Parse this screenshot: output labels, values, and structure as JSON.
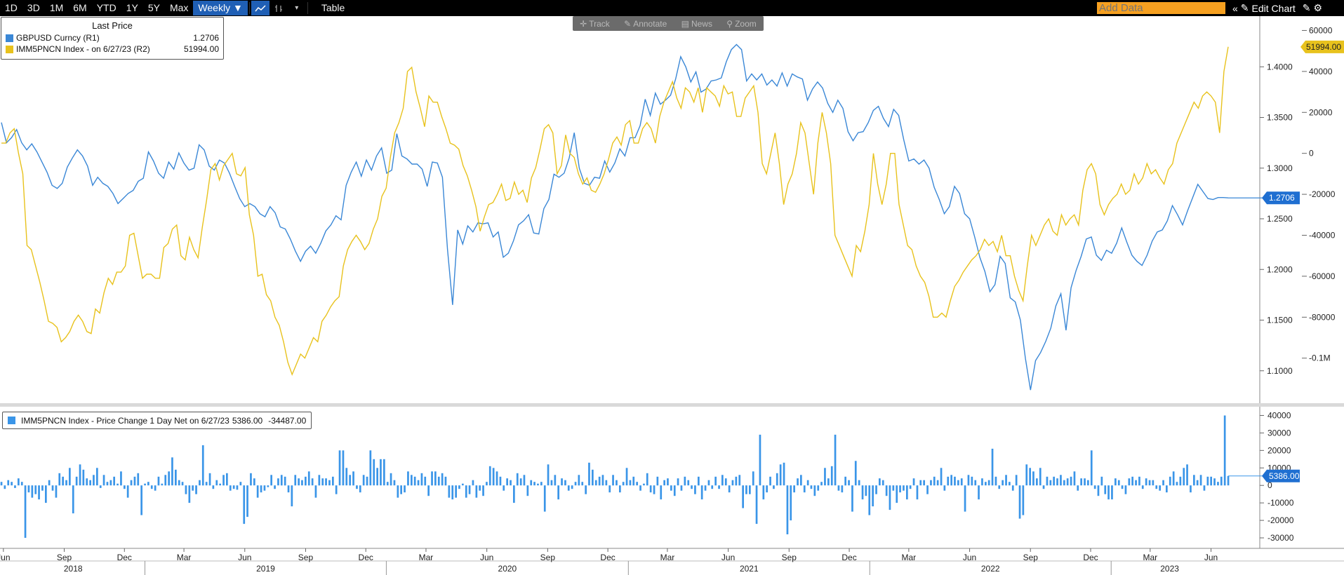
{
  "toolbar": {
    "ranges": [
      "1D",
      "3D",
      "1M",
      "6M",
      "YTD",
      "1Y",
      "5Y",
      "Max"
    ],
    "period": "Weekly ▼",
    "table_label": "Table",
    "add_data_placeholder": "Add Data",
    "edit_chart_label": "Edit Chart"
  },
  "overlay_tools": {
    "track": "Track",
    "annotate": "Annotate",
    "news": "News",
    "zoom": "Zoom"
  },
  "legend_top": {
    "title": "Last Price",
    "rows": [
      {
        "name": "GBPUSD Curncy  (R1)",
        "value": "1.2706",
        "color": "#3a87d6"
      },
      {
        "name": "IMM5PNCN Index -  on 6/27/23  (R2)",
        "value": "51994.00",
        "color": "#e8c21d"
      }
    ]
  },
  "legend_bottom": {
    "name": "IMM5PNCN Index - Price Change 1 Day Net on 6/27/23",
    "value1": "5386.00",
    "value2": "-34487.00",
    "color": "#3a95e8"
  },
  "colors": {
    "gbpusd": "#3a87d6",
    "imm": "#e8c21d",
    "bars": "#3a95e8",
    "tag_blue": "#1f6fd1",
    "tag_yellow": "#e8c21d"
  },
  "chart_data": [
    {
      "type": "line",
      "x_axis": {
        "month_labels": [
          "Jun",
          "Sep",
          "Dec",
          "Mar",
          "Jun",
          "Sep",
          "Dec",
          "Mar",
          "Jun",
          "Sep",
          "Dec",
          "Mar",
          "Jun",
          "Sep",
          "Dec",
          "Mar",
          "Jun",
          "Sep",
          "Dec",
          "Mar",
          "Jun"
        ],
        "year_labels": [
          "2018",
          "2019",
          "2020",
          "2021",
          "2022",
          "2023"
        ],
        "start": "2018-05-29",
        "end": "2023-06-27"
      },
      "y_axis_right_r1": {
        "ticks": [
          "1.4000",
          "1.3500",
          "1.3000",
          "1.2500",
          "1.2000",
          "1.1500",
          "1.1000"
        ],
        "range": [
          1.068,
          1.45
        ]
      },
      "y_axis_right_r2": {
        "ticks": [
          "60000",
          "40000",
          "20000",
          "0",
          "-20000",
          "-40000",
          "-60000",
          "-80000",
          "-0.1M"
        ],
        "range": [
          -122000,
          67000
        ]
      },
      "last_value_tags": {
        "r1": "1.2706",
        "r2": "51994.00"
      },
      "series": [
        {
          "name": "GBPUSD Curncy  (R1)",
          "axis": "R1",
          "values": [
            1.345,
            1.325,
            1.33,
            1.338,
            1.325,
            1.318,
            1.324,
            1.316,
            1.306,
            1.296,
            1.283,
            1.28,
            1.285,
            1.301,
            1.31,
            1.318,
            1.312,
            1.302,
            1.283,
            1.291,
            1.285,
            1.282,
            1.275,
            1.265,
            1.27,
            1.275,
            1.278,
            1.287,
            1.29,
            1.316,
            1.307,
            1.295,
            1.29,
            1.306,
            1.299,
            1.315,
            1.305,
            1.298,
            1.3,
            1.323,
            1.318,
            1.302,
            1.298,
            1.308,
            1.305,
            1.295,
            1.282,
            1.27,
            1.262,
            1.265,
            1.262,
            1.255,
            1.252,
            1.262,
            1.256,
            1.242,
            1.24,
            1.23,
            1.218,
            1.208,
            1.218,
            1.223,
            1.216,
            1.226,
            1.238,
            1.244,
            1.253,
            1.249,
            1.283,
            1.296,
            1.306,
            1.292,
            1.308,
            1.298,
            1.312,
            1.32,
            1.295,
            1.298,
            1.334,
            1.312,
            1.309,
            1.304,
            1.304,
            1.299,
            1.282,
            1.306,
            1.305,
            1.291,
            1.22,
            1.165,
            1.239,
            1.225,
            1.243,
            1.237,
            1.246,
            1.245,
            1.246,
            1.232,
            1.237,
            1.212,
            1.216,
            1.228,
            1.244,
            1.248,
            1.254,
            1.236,
            1.235,
            1.26,
            1.269,
            1.294,
            1.291,
            1.295,
            1.31,
            1.335,
            1.3,
            1.285,
            1.283,
            1.291,
            1.29,
            1.307,
            1.296,
            1.305,
            1.319,
            1.312,
            1.33,
            1.33,
            1.342,
            1.368,
            1.352,
            1.374,
            1.363,
            1.367,
            1.372,
            1.388,
            1.41,
            1.4,
            1.385,
            1.395,
            1.375,
            1.378,
            1.386,
            1.387,
            1.389,
            1.405,
            1.417,
            1.422,
            1.417,
            1.386,
            1.393,
            1.387,
            1.393,
            1.382,
            1.387,
            1.381,
            1.394,
            1.381,
            1.393,
            1.39,
            1.388,
            1.367,
            1.378,
            1.385,
            1.379,
            1.364,
            1.355,
            1.367,
            1.359,
            1.336,
            1.327,
            1.335,
            1.336,
            1.345,
            1.357,
            1.361,
            1.349,
            1.341,
            1.358,
            1.352,
            1.328,
            1.307,
            1.309,
            1.304,
            1.308,
            1.3,
            1.281,
            1.269,
            1.255,
            1.262,
            1.282,
            1.275,
            1.255,
            1.25,
            1.232,
            1.212,
            1.198,
            1.178,
            1.185,
            1.213,
            1.206,
            1.172,
            1.168,
            1.15,
            1.112,
            1.081,
            1.11,
            1.118,
            1.129,
            1.142,
            1.164,
            1.176,
            1.14,
            1.182,
            1.199,
            1.213,
            1.23,
            1.232,
            1.214,
            1.209,
            1.219,
            1.216,
            1.226,
            1.241,
            1.227,
            1.214,
            1.208,
            1.204,
            1.214,
            1.228,
            1.237,
            1.239,
            1.248,
            1.263,
            1.254,
            1.244,
            1.258,
            1.271,
            1.284,
            1.277,
            1.27,
            1.269,
            1.271,
            1.271,
            1.2706
          ]
        },
        {
          "name": "IMM5PNCN Index -  on 6/27/23  (R2)",
          "axis": "R2",
          "values": [
            5000,
            5000,
            10000,
            12000,
            0,
            -10000,
            -45000,
            -47000,
            -55000,
            -63000,
            -72000,
            -82000,
            -83000,
            -85000,
            -92000,
            -90000,
            -87000,
            -82000,
            -79000,
            -82000,
            -87000,
            -88000,
            -76000,
            -78000,
            -68000,
            -61000,
            -64000,
            -58000,
            -58000,
            -55000,
            -40000,
            -39000,
            -50000,
            -61000,
            -59000,
            -59000,
            -61000,
            -61000,
            -46000,
            -44000,
            -37000,
            -35000,
            -50000,
            -52000,
            -41000,
            -47000,
            -51000,
            -36000,
            -23000,
            -8000,
            -5000,
            -13000,
            -6000,
            -3000,
            0,
            -10000,
            -11000,
            -7000,
            -30000,
            -40000,
            -60000,
            -59000,
            -69000,
            -72000,
            -80000,
            -84000,
            -92000,
            -102000,
            -108000,
            -103000,
            -98000,
            -100000,
            -95000,
            -90000,
            -92000,
            -82000,
            -79000,
            -75000,
            -72000,
            -70000,
            -55000,
            -47000,
            -43000,
            -40000,
            -43000,
            -47000,
            -44000,
            -37000,
            -32000,
            -21000,
            -17000,
            -2000,
            10000,
            15000,
            22000,
            40000,
            42000,
            30000,
            22000,
            13000,
            28000,
            25000,
            25000,
            18000,
            12000,
            5000,
            4000,
            2000,
            -6000,
            -11000,
            -18000,
            -26000,
            -38000,
            -31000,
            -25000,
            -24000,
            -20000,
            -15000,
            -23000,
            -22000,
            -14000,
            -20000,
            -18000,
            -24000,
            -12000,
            -7000,
            2000,
            12000,
            14000,
            10000,
            -10000,
            -6000,
            9000,
            0,
            -2000,
            -10000,
            -15000,
            -12000,
            -18000,
            -19000,
            -15000,
            -10000,
            -3000,
            5000,
            8000,
            4000,
            14000,
            16000,
            5000,
            5000,
            12000,
            15000,
            12000,
            5000,
            18000,
            25000,
            30000,
            35000,
            27000,
            22000,
            32000,
            30000,
            25000,
            32000,
            20000,
            32000,
            30000,
            28000,
            23000,
            33000,
            29000,
            30000,
            18000,
            18000,
            27000,
            30000,
            33000,
            20000,
            -5000,
            -10000,
            0,
            10000,
            -5000,
            -25000,
            -15000,
            -10000,
            0,
            15000,
            10000,
            -5000,
            -20000,
            5000,
            20000,
            10000,
            -5000,
            -40000,
            -45000,
            -50000,
            -55000,
            -60000,
            -45000,
            -48000,
            -38000,
            -25000,
            0,
            -15000,
            -25000,
            -15000,
            0,
            0,
            -25000,
            -35000,
            -45000,
            -47000,
            -55000,
            -60000,
            -63000,
            -70000,
            -80000,
            -80000,
            -78000,
            -80000,
            -72000,
            -65000,
            -62000,
            -58000,
            -55000,
            -52000,
            -50000,
            -47000,
            -42000,
            -45000,
            -43000,
            -48000,
            -40000,
            -50000,
            -50000,
            -60000,
            -67000,
            -72000,
            -55000,
            -40000,
            -45000,
            -40000,
            -35000,
            -32000,
            -38000,
            -40000,
            -30000,
            -35000,
            -32000,
            -30000,
            -35000,
            -18000,
            -8000,
            -5000,
            -10000,
            -25000,
            -30000,
            -25000,
            -22000,
            -20000,
            -15000,
            -20000,
            -18000,
            -10000,
            -15000,
            -12000,
            -5000,
            -10000,
            -8000,
            -12000,
            -15000,
            -8000,
            -5000,
            5000,
            10000,
            15000,
            20000,
            25000,
            22000,
            28000,
            30000,
            28000,
            25000,
            10000,
            40000,
            51994
          ]
        }
      ]
    },
    {
      "type": "bar",
      "name": "IMM5PNCN Index - Price Change 1 Day Net",
      "y_axis_ticks": [
        "40000",
        "30000",
        "20000",
        "10000",
        "0",
        "-10000",
        "-20000",
        "-30000"
      ],
      "ylim": [
        -36000,
        45000
      ],
      "last_value_tag": "5386.00",
      "values": [
        2000,
        -2000,
        3000,
        2000,
        -1500,
        4000,
        2000,
        -30000,
        -4000,
        -7000,
        -5000,
        -8000,
        -3000,
        -10000,
        3000,
        -3000,
        -7000,
        7000,
        5000,
        3000,
        10000,
        -16000,
        5000,
        12000,
        9000,
        4000,
        3000,
        6000,
        10000,
        -1500,
        6000,
        2000,
        3000,
        5000,
        1000,
        8000,
        -2000,
        -7000,
        3000,
        5000,
        7000,
        -17000,
        1000,
        2000,
        -2000,
        -3000,
        5000,
        1000,
        6000,
        8000,
        16000,
        9000,
        3000,
        2000,
        -5000,
        -10000,
        -3000,
        -5000,
        3000,
        23000,
        2000,
        7000,
        -2000,
        3000,
        1000,
        6000,
        7000,
        -3000,
        -2000,
        -2500,
        2000,
        -22000,
        -18000,
        7000,
        4000,
        -7000,
        -4000,
        -3000,
        -1000,
        6000,
        -2000,
        4000,
        6000,
        5000,
        -4000,
        -12000,
        6000,
        4000,
        3000,
        5000,
        8000,
        4000,
        -7000,
        6000,
        4000,
        4000,
        3000,
        5000,
        -5000,
        20000,
        20000,
        10000,
        6000,
        8000,
        -2000,
        -4000,
        6000,
        5000,
        20000,
        15000,
        10000,
        15000,
        15000,
        2000,
        7000,
        3000,
        -7000,
        -5000,
        -4000,
        8000,
        6000,
        5000,
        3000,
        7000,
        5000,
        -6000,
        8000,
        8000,
        5000,
        7000,
        5000,
        -7000,
        -8000,
        -7000,
        -2000,
        1000,
        -7000,
        -5000,
        3000,
        -7000,
        -3000,
        -6000,
        2000,
        11000,
        10000,
        8000,
        5000,
        -3000,
        4000,
        3000,
        -10000,
        7000,
        4000,
        6000,
        -6000,
        3000,
        2000,
        1000,
        2000,
        -15000,
        12000,
        3000,
        6000,
        -8000,
        4000,
        3000,
        -3000,
        -2000,
        2000,
        6000,
        2000,
        -5000,
        13000,
        9000,
        3000,
        5000,
        6000,
        3000,
        -4000,
        6000,
        3000,
        -4000,
        2000,
        10000,
        3000,
        5000,
        2000,
        -3000,
        1000,
        7000,
        -4000,
        -5000,
        5000,
        -8000,
        3000,
        4000,
        -3000,
        -6000,
        4000,
        -3000,
        5000,
        3000,
        -2000,
        -5000,
        5000,
        -8000,
        -3000,
        3000,
        -2000,
        5000,
        -2000,
        6000,
        4000,
        -4000,
        3000,
        5000,
        6000,
        -13000,
        -5000,
        -5000,
        8000,
        -22000,
        29000,
        -8000,
        -4000,
        5000,
        -2000,
        7000,
        12000,
        13000,
        -28000,
        -20000,
        -4000,
        4000,
        6000,
        -4000,
        3000,
        -2000,
        -6000,
        -3000,
        2000,
        10000,
        4000,
        11000,
        29000,
        -3000,
        -4000,
        5000,
        3000,
        -15000,
        14000,
        3000,
        -8000,
        -6000,
        -17000,
        -12000,
        -5000,
        4000,
        3000,
        -6000,
        -14000,
        -3000,
        -10000,
        -4000,
        -3000,
        -8000,
        -2000,
        4000,
        -8000,
        3000,
        3000,
        -5000,
        3000,
        5000,
        3000,
        10000,
        -3000,
        5000,
        6000,
        5000,
        3000,
        4000,
        -15000,
        6000,
        5000,
        3000,
        -8000,
        4000,
        2000,
        3000,
        21000,
        5000,
        -2000,
        3000,
        6000,
        2000,
        -3000,
        6000,
        -19000,
        -17000,
        12000,
        10000,
        8000,
        4000,
        10000,
        -2000,
        5000,
        3000,
        5000,
        4000,
        6000,
        3000,
        4000,
        5000,
        8000,
        -3000,
        4000,
        4000,
        3000,
        20000,
        -2000,
        -6000,
        5000,
        -5000,
        -8000,
        -8000,
        4000,
        3000,
        -2000,
        -5000,
        4000,
        5000,
        3000,
        5000,
        -2000,
        4000,
        3000,
        3000,
        -2000,
        -3000,
        3000,
        -4000,
        5000,
        8000,
        2000,
        5000,
        10000,
        12000,
        -4000,
        6000,
        3000,
        6000,
        -3000,
        5000,
        5000,
        4000,
        2000,
        5000,
        40000,
        5386
      ]
    }
  ]
}
